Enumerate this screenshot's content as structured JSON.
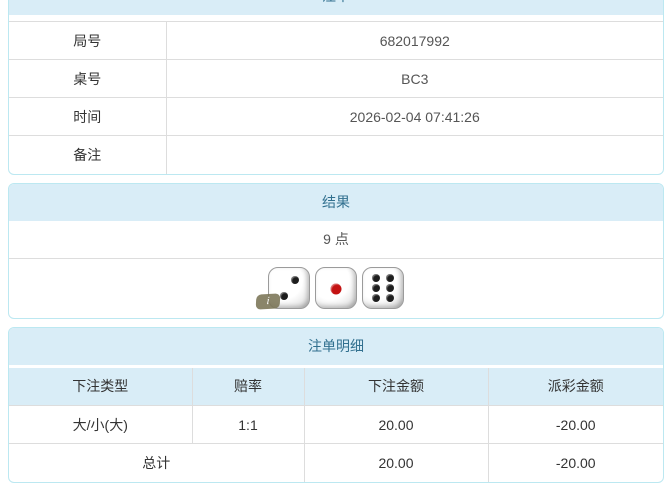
{
  "colors": {
    "header_bg": "#d9edf7",
    "header_text": "#31708f",
    "panel_border": "#bce8f1",
    "row_border": "#dddddd",
    "red": "#e0393d",
    "text": "#333333",
    "value_text": "#555555"
  },
  "bet_slip": {
    "title": "注单",
    "rows": [
      {
        "label": "局号",
        "value": "682017992"
      },
      {
        "label": "桌号",
        "value": "BC3"
      },
      {
        "label": "时间",
        "value": "2026-02-04 07:41:26"
      },
      {
        "label": "备注",
        "value": ""
      }
    ]
  },
  "result": {
    "title": "结果",
    "points_text": "9 点",
    "dice": [
      {
        "value": 2,
        "pip_color": "#1d1d1d"
      },
      {
        "value": 1,
        "pip_color": "#c41212"
      },
      {
        "value": 6,
        "pip_color": "#1d1d1d"
      }
    ],
    "info_badge": "i"
  },
  "bet_details": {
    "title": "注单明细",
    "columns": [
      "下注类型",
      "赔率",
      "下注金额",
      "派彩金额"
    ],
    "rows": [
      {
        "bet_type": "大/小(大)",
        "odds": "1:1",
        "bet_amount": "20.00",
        "payout": "-20.00"
      }
    ],
    "total": {
      "label": "总计",
      "bet_amount": "20.00",
      "payout": "-20.00"
    }
  }
}
